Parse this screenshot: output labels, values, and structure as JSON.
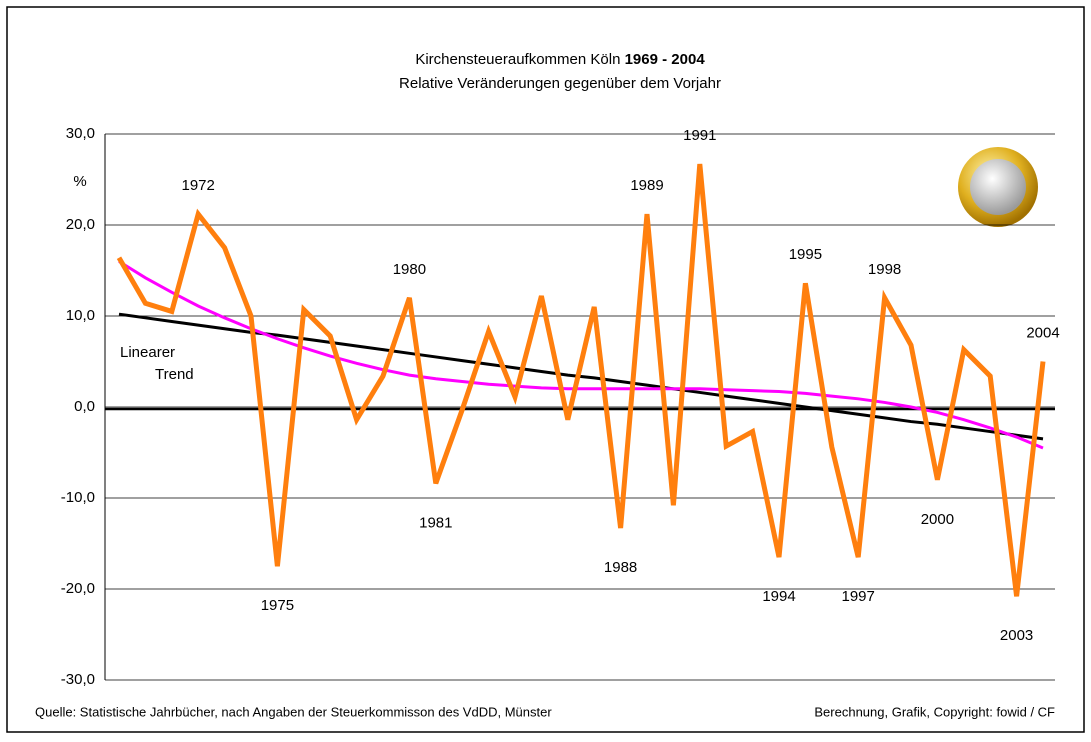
{
  "chart_data": {
    "type": "line",
    "title": "Kirchensteueraufkommen Köln",
    "title_years": "1969 - 2004",
    "subtitle": "Relative Veränderungen gegenüber dem Vorjahr",
    "y_label": "%",
    "source": "Quelle: Statistische Jahrbücher, nach Angaben der Steuerkommisson des VdDD, Münster",
    "credit": "Berechnung, Grafik, Copyright: fowid / CF",
    "trend_label": [
      "Linearer",
      "Trend"
    ],
    "x": [
      1969,
      1970,
      1971,
      1972,
      1973,
      1974,
      1975,
      1976,
      1977,
      1978,
      1979,
      1980,
      1981,
      1982,
      1983,
      1984,
      1985,
      1986,
      1987,
      1988,
      1989,
      1990,
      1991,
      1992,
      1993,
      1994,
      1995,
      1996,
      1997,
      1998,
      1999,
      2000,
      2001,
      2002,
      2003,
      2004
    ],
    "series": [
      {
        "color": "#ff7f0e",
        "width": 5,
        "values": [
          16.4,
          11.4,
          10.5,
          21.2,
          17.5,
          10.0,
          -17.5,
          10.7,
          7.8,
          -1.4,
          3.4,
          12.0,
          -8.4,
          -0.3,
          8.3,
          1.1,
          12.2,
          -1.4,
          11.0,
          -13.3,
          21.2,
          -10.8,
          26.7,
          -4.3,
          -2.7,
          -16.5,
          13.6,
          -4.4,
          -16.5,
          12.0,
          6.8,
          -8.0,
          6.3,
          3.4,
          -20.8,
          5.0
        ]
      },
      {
        "color": "#000000",
        "width": 3,
        "values": [
          10.2,
          9.8,
          9.4,
          9.0,
          8.6,
          8.2,
          7.9,
          7.5,
          7.1,
          6.7,
          6.3,
          5.9,
          5.5,
          5.1,
          4.7,
          4.3,
          3.9,
          3.5,
          3.2,
          2.8,
          2.4,
          2.0,
          1.6,
          1.2,
          0.8,
          0.4,
          0.0,
          -0.4,
          -0.8,
          -1.2,
          -1.6,
          -1.9,
          -2.3,
          -2.7,
          -3.1,
          -3.5
        ]
      },
      {
        "color": "#ff00ff",
        "width": 3,
        "values": [
          16.0,
          14.2,
          12.6,
          11.1,
          9.8,
          8.6,
          7.5,
          6.5,
          5.6,
          4.8,
          4.1,
          3.5,
          3.1,
          2.8,
          2.5,
          2.3,
          2.1,
          2.0,
          2.0,
          2.0,
          2.0,
          2.0,
          2.0,
          1.9,
          1.8,
          1.7,
          1.5,
          1.2,
          0.9,
          0.5,
          0.0,
          -0.6,
          -1.4,
          -2.3,
          -3.3,
          -4.5
        ]
      }
    ],
    "labeled_years": [
      1972,
      1975,
      1980,
      1981,
      1988,
      1989,
      1991,
      1994,
      1995,
      1997,
      1998,
      2000,
      2003,
      2004
    ],
    "ylim": [
      -30,
      30
    ],
    "yticks": [
      {
        "value": -30,
        "label": "-30,0"
      },
      {
        "value": -20,
        "label": "-20,0"
      },
      {
        "value": -10,
        "label": "-10,0"
      },
      {
        "value": 0,
        "label": "0,0"
      },
      {
        "value": 10,
        "label": "10,0"
      },
      {
        "value": 20,
        "label": "20,0"
      },
      {
        "value": 30,
        "label": "30,0"
      }
    ],
    "grid": true
  }
}
